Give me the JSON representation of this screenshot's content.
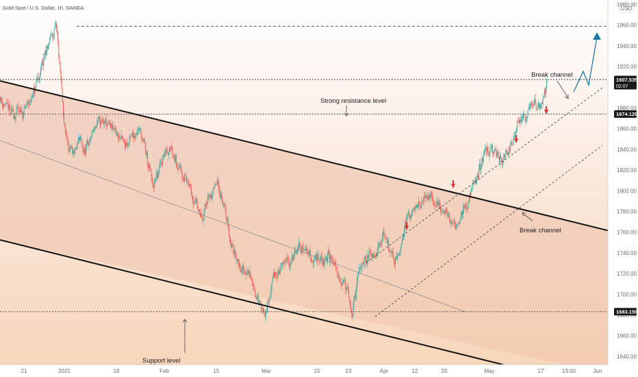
{
  "header": {
    "title": "Gold Spot / U.S. Dollar, 1h, OANDA",
    "currency": "USD"
  },
  "chart_data": {
    "type": "candlestick",
    "title": "Gold Spot / U.S. Dollar, 1h, OANDA",
    "ylabel": "USD",
    "ylim": [
      1632,
      1983
    ],
    "yticks": [
      1640,
      1660,
      1680,
      1700,
      1720,
      1740,
      1760,
      1780,
      1800,
      1820,
      1840,
      1860,
      1880,
      1900,
      1920,
      1940,
      1960,
      1980
    ],
    "xticks": [
      "21",
      "2021",
      "18",
      "Feb",
      "15",
      "Mar",
      "15",
      "23",
      "Apr",
      "12",
      "20",
      "May",
      "17",
      "13:00",
      "Jun"
    ],
    "price_path": [
      [
        "Dec 14",
        1820
      ],
      [
        "Dec 16",
        1862
      ],
      [
        "Dec 18",
        1880
      ],
      [
        "Dec 21",
        1890
      ],
      [
        "Dec 24",
        1874
      ],
      [
        "Dec 28",
        1876
      ],
      [
        "Dec 31",
        1895
      ],
      [
        "Jan 4",
        1945
      ],
      [
        "Jan 6",
        1959
      ],
      [
        "Jan 7",
        1910
      ],
      [
        "Jan 8",
        1860
      ],
      [
        "Jan 11",
        1830
      ],
      [
        "Jan 13",
        1850
      ],
      [
        "Jan 15",
        1835
      ],
      [
        "Jan 18",
        1862
      ],
      [
        "Jan 21",
        1868
      ],
      [
        "Jan 25",
        1855
      ],
      [
        "Jan 28",
        1845
      ],
      [
        "Feb 1",
        1862
      ],
      [
        "Feb 3",
        1835
      ],
      [
        "Feb 5",
        1800
      ],
      [
        "Feb 8",
        1835
      ],
      [
        "Feb 10",
        1845
      ],
      [
        "Feb 12",
        1825
      ],
      [
        "Feb 16",
        1795
      ],
      [
        "Feb 18",
        1775
      ],
      [
        "Feb 22",
        1808
      ],
      [
        "Feb 24",
        1790
      ],
      [
        "Feb 26",
        1750
      ],
      [
        "Mar 1",
        1725
      ],
      [
        "Mar 3",
        1720
      ],
      [
        "Mar 5",
        1700
      ],
      [
        "Mar 8",
        1680
      ],
      [
        "Mar 10",
        1718
      ],
      [
        "Mar 12",
        1725
      ],
      [
        "Mar 15",
        1735
      ],
      [
        "Mar 17",
        1745
      ],
      [
        "Mar 19",
        1742
      ],
      [
        "Mar 23",
        1730
      ],
      [
        "Mar 25",
        1738
      ],
      [
        "Mar 29",
        1712
      ],
      [
        "Mar 31",
        1680
      ],
      [
        "Apr 2",
        1730
      ],
      [
        "Apr 6",
        1742
      ],
      [
        "Apr 8",
        1758
      ],
      [
        "Apr 12",
        1730
      ],
      [
        "Apr 14",
        1748
      ],
      [
        "Apr 16",
        1775
      ],
      [
        "Apr 20",
        1785
      ],
      [
        "Apr 22",
        1795
      ],
      [
        "Apr 26",
        1785
      ],
      [
        "Apr 28",
        1775
      ],
      [
        "Apr 30",
        1768
      ],
      [
        "May 3",
        1790
      ],
      [
        "May 5",
        1815
      ],
      [
        "May 7",
        1840
      ],
      [
        "May 10",
        1838
      ],
      [
        "May 12",
        1825
      ],
      [
        "May 14",
        1840
      ],
      [
        "May 17",
        1865
      ],
      [
        "May 19",
        1872
      ],
      [
        "May 21",
        1880
      ],
      [
        "May 24",
        1885
      ],
      [
        "May 26",
        1895
      ],
      [
        "May 27",
        1907.5
      ]
    ],
    "horizontal_levels": [
      {
        "value": 1959,
        "label": ""
      },
      {
        "value": 1907.535,
        "label": "1907.535",
        "sublabel": "02:07"
      },
      {
        "value": 1874.129,
        "label": "1874.129"
      },
      {
        "value": 1683.159,
        "label": "1683.159"
      }
    ],
    "annotations": [
      {
        "text": "Strong resistance level"
      },
      {
        "text": "Support level"
      },
      {
        "text": "Break channel"
      },
      {
        "text": "Break channel"
      }
    ],
    "colors": {
      "up": "#26a69a",
      "down": "#ef5350",
      "arrow": "#e03030",
      "projection": "#1b7aa6",
      "tag": "#1a1a1a"
    }
  }
}
